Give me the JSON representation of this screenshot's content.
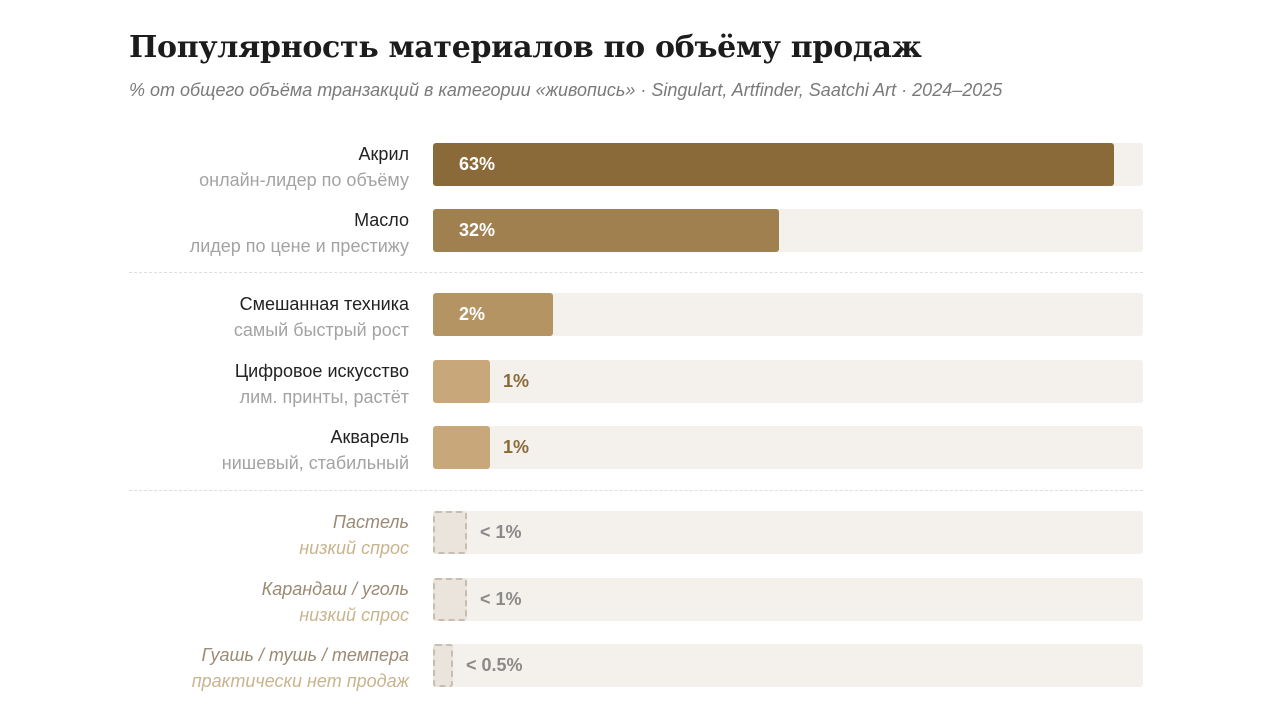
{
  "title": "Популярность материалов по объёму продаж",
  "subtitle": "% от общего объёма транзакций в категории «живопись» · Singulart, Artfinder, Saatchi Art · 2024–2025",
  "chart_data": {
    "type": "bar",
    "orientation": "horizontal",
    "title": "Популярность материалов по объёму продаж",
    "subtitle": "% от общего объёма транзакций в категории «живопись» · Singulart, Artfinder, Saatchi Art · 2024–2025",
    "xlim": [
      0,
      100
    ],
    "grid": false,
    "groups": [
      [
        {
          "name": "Акрил",
          "note": "онлайн-лидер по объёму",
          "value": 63,
          "label": "63%",
          "color": "#8b6a3a",
          "style": "solid"
        },
        {
          "name": "Масло",
          "note": "лидер по цене и престижу",
          "value": 32,
          "label": "32%",
          "color": "#a0804f",
          "style": "solid"
        }
      ],
      [
        {
          "name": "Смешанная техника",
          "note": "самый быстрый рост",
          "value": 2,
          "label": "2%",
          "color": "#b59463",
          "style": "solid"
        },
        {
          "name": "Цифровое искусство",
          "note": "лим. принты, растёт",
          "value": 1,
          "label": "1%",
          "color": "#c8a87a",
          "style": "solid"
        },
        {
          "name": "Акварель",
          "note": "нишевый, стабильный",
          "value": 1,
          "label": "1%",
          "color": "#c8a87a",
          "style": "solid"
        }
      ],
      [
        {
          "name": "Пастель",
          "note": "низкий спрос",
          "value": 0.5,
          "label": "< 1%",
          "color": "#ebe4dc",
          "style": "dashed"
        },
        {
          "name": "Карандаш / уголь",
          "note": "низкий спрос",
          "value": 0.5,
          "label": "< 1%",
          "color": "#ebe4dc",
          "style": "dashed"
        },
        {
          "name": "Гуашь / тушь / темпера",
          "note": "практически нет продаж",
          "value": 0.3,
          "label": "< 0.5%",
          "color": "#ebe4dc",
          "style": "dashed"
        }
      ]
    ]
  }
}
